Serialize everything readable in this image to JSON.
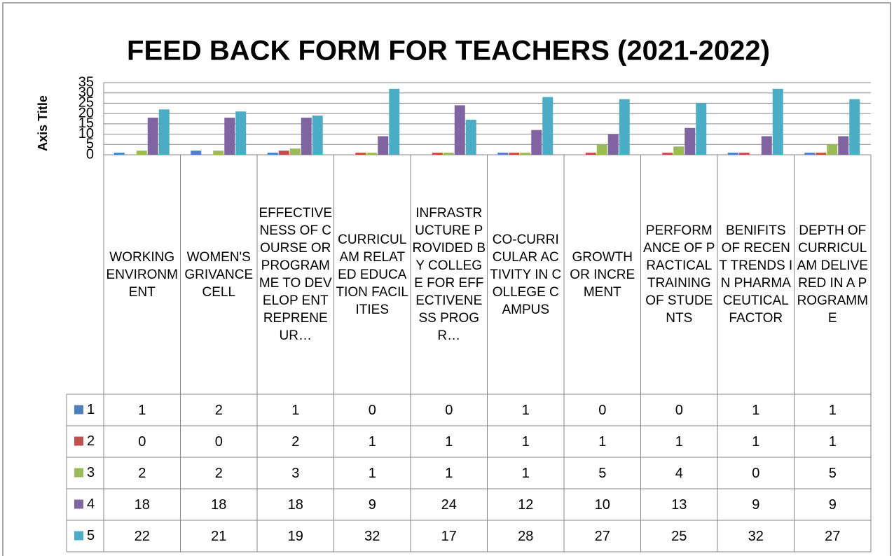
{
  "chart_data": {
    "type": "bar",
    "title": "FEED BACK FORM FOR TEACHERS (2021-2022)",
    "y_label": "Axis Title",
    "categories": [
      "WORKING ENVIRONMENT",
      "WOMEN'S GRIVANCE CELL",
      "EFFECTIVENESS OF COURSE OR PROGRAMME TO DEVELOP ENTREPRENEUR…",
      "CURRICULAM RELATED EDUCATION FACILITIES",
      "INFRASTRUCTURE PROVIDED BY COLLEGE FOR EFFECTIVENESS PROGR…",
      "CO-CURRICULAR ACTIVITY IN COLLEGE CAMPUS",
      "GROWTH OR INCREMENT",
      "PERFORMANCE OF PRACTICAL TRAINING OF STUDENTS",
      "BENIFITS OF RECENT TRENDS IN PHARMACEUTICAL FACTOR",
      "DEPTH OF CURRICULAM DELIVERED IN A PROGRAMME"
    ],
    "series": [
      {
        "name": "1",
        "color": "#4f81bd",
        "values": [
          1,
          2,
          1,
          0,
          0,
          1,
          0,
          0,
          1,
          1
        ]
      },
      {
        "name": "2",
        "color": "#c0504d",
        "values": [
          0,
          0,
          2,
          1,
          1,
          1,
          1,
          1,
          1,
          1
        ]
      },
      {
        "name": "3",
        "color": "#9bbb59",
        "values": [
          2,
          2,
          3,
          1,
          1,
          1,
          5,
          4,
          0,
          5
        ]
      },
      {
        "name": "4",
        "color": "#8064a2",
        "values": [
          18,
          18,
          18,
          9,
          24,
          12,
          10,
          13,
          9,
          9
        ]
      },
      {
        "name": "5",
        "color": "#4bacc6",
        "values": [
          22,
          21,
          19,
          32,
          17,
          28,
          27,
          25,
          32,
          27
        ]
      }
    ],
    "ylim": [
      0,
      35
    ],
    "yticks": [
      0,
      5,
      10,
      15,
      20,
      25,
      30,
      35
    ],
    "grid": true
  }
}
